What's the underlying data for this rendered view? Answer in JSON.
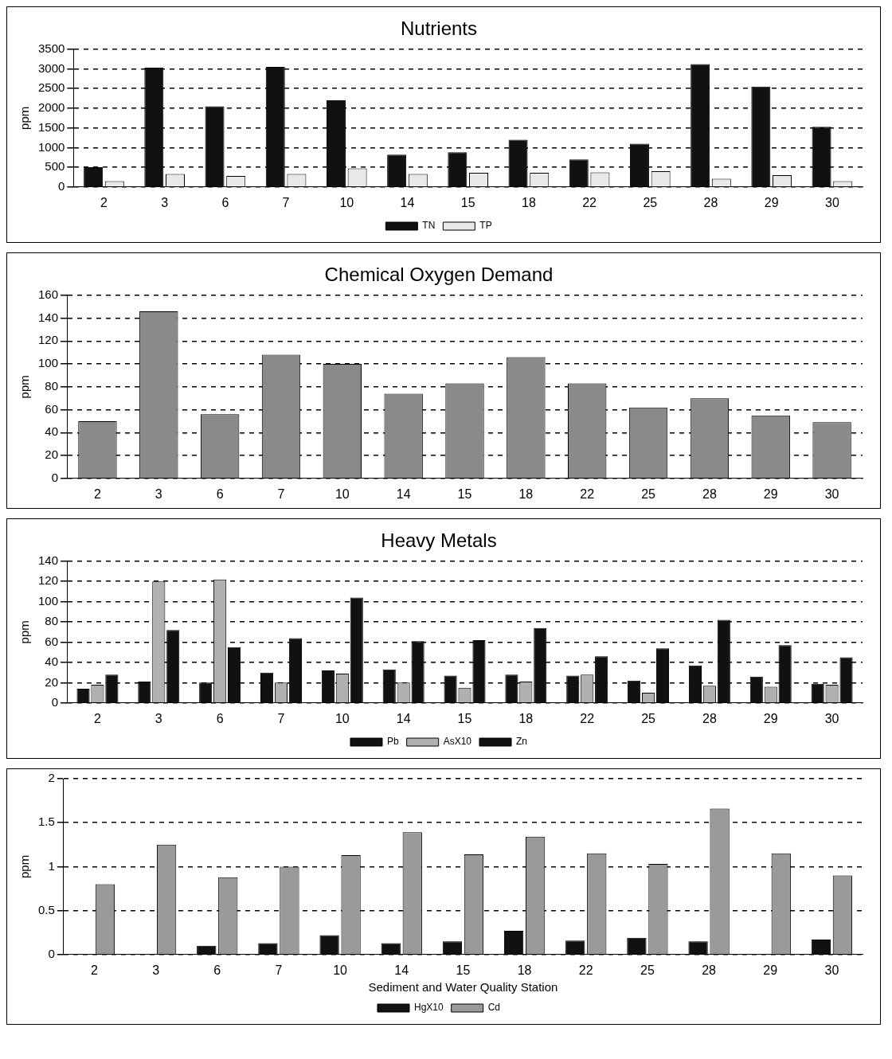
{
  "chart_data": [
    {
      "type": "bar",
      "title": "Nutrients",
      "ylabel": "ppm",
      "categories": [
        "2",
        "3",
        "6",
        "7",
        "10",
        "14",
        "15",
        "18",
        "22",
        "25",
        "28",
        "29",
        "30"
      ],
      "series": [
        {
          "name": "TN",
          "color": "#111111",
          "values": [
            500,
            3030,
            2050,
            3050,
            2200,
            820,
            880,
            1200,
            700,
            1100,
            3120,
            2550,
            1530
          ]
        },
        {
          "name": "TP",
          "color": "#e8e8e8",
          "values": [
            150,
            330,
            280,
            330,
            470,
            330,
            360,
            360,
            370,
            400,
            210,
            300,
            150
          ]
        }
      ],
      "ylim": [
        0,
        3500
      ],
      "yticks": [
        0,
        500,
        1000,
        1500,
        2000,
        2500,
        3000,
        3500
      ],
      "grid": "y",
      "legend": "bottom"
    },
    {
      "type": "bar",
      "title": "Chemical Oxygen Demand",
      "ylabel": "ppm",
      "categories": [
        "2",
        "3",
        "6",
        "7",
        "10",
        "14",
        "15",
        "18",
        "22",
        "25",
        "28",
        "29",
        "30"
      ],
      "values": [
        50,
        146,
        56,
        108,
        100,
        74,
        83,
        106,
        83,
        62,
        70,
        55,
        49
      ],
      "color": "#8a8a8a",
      "ylim": [
        0,
        160
      ],
      "yticks": [
        0,
        20,
        40,
        60,
        80,
        100,
        120,
        140,
        160
      ],
      "grid": "y"
    },
    {
      "type": "bar",
      "title": "Heavy Metals",
      "ylabel": "ppm",
      "categories": [
        "2",
        "3",
        "6",
        "7",
        "10",
        "14",
        "15",
        "18",
        "22",
        "25",
        "28",
        "29",
        "30"
      ],
      "series": [
        {
          "name": "Pb",
          "color": "#111111",
          "values": [
            14,
            21,
            20,
            30,
            32,
            33,
            27,
            28,
            27,
            22,
            37,
            26,
            19
          ]
        },
        {
          "name": "AsX10",
          "color": "#b0b0b0",
          "values": [
            18,
            120,
            122,
            20,
            29,
            20,
            15,
            21,
            28,
            10,
            17,
            16,
            18
          ]
        },
        {
          "name": "Zn",
          "color": "#111111",
          "values": [
            28,
            72,
            55,
            64,
            104,
            61,
            62,
            74,
            46,
            54,
            82,
            57,
            45
          ]
        }
      ],
      "ylim": [
        0,
        140
      ],
      "yticks": [
        0,
        20,
        40,
        60,
        80,
        100,
        120,
        140
      ],
      "grid": "y",
      "legend": "bottom"
    },
    {
      "type": "bar",
      "xlabel": "Sediment and Water Quality Station",
      "ylabel": "ppm",
      "categories": [
        "2",
        "3",
        "6",
        "7",
        "10",
        "14",
        "15",
        "18",
        "22",
        "25",
        "28",
        "29",
        "30"
      ],
      "series": [
        {
          "name": "HgX10",
          "color": "#111111",
          "values": [
            0,
            0,
            0.1,
            0.13,
            0.22,
            0.13,
            0.15,
            0.27,
            0.16,
            0.19,
            0.15,
            0,
            0.17
          ]
        },
        {
          "name": "Cd",
          "color": "#9a9a9a",
          "values": [
            0.8,
            1.25,
            0.88,
            1.0,
            1.13,
            1.39,
            1.14,
            1.34,
            1.15,
            1.03,
            1.66,
            1.15,
            0.9
          ]
        }
      ],
      "ylim": [
        0,
        2
      ],
      "yticks": [
        0,
        0.5,
        1,
        1.5,
        2
      ],
      "grid": "y",
      "legend": "bottom"
    }
  ]
}
